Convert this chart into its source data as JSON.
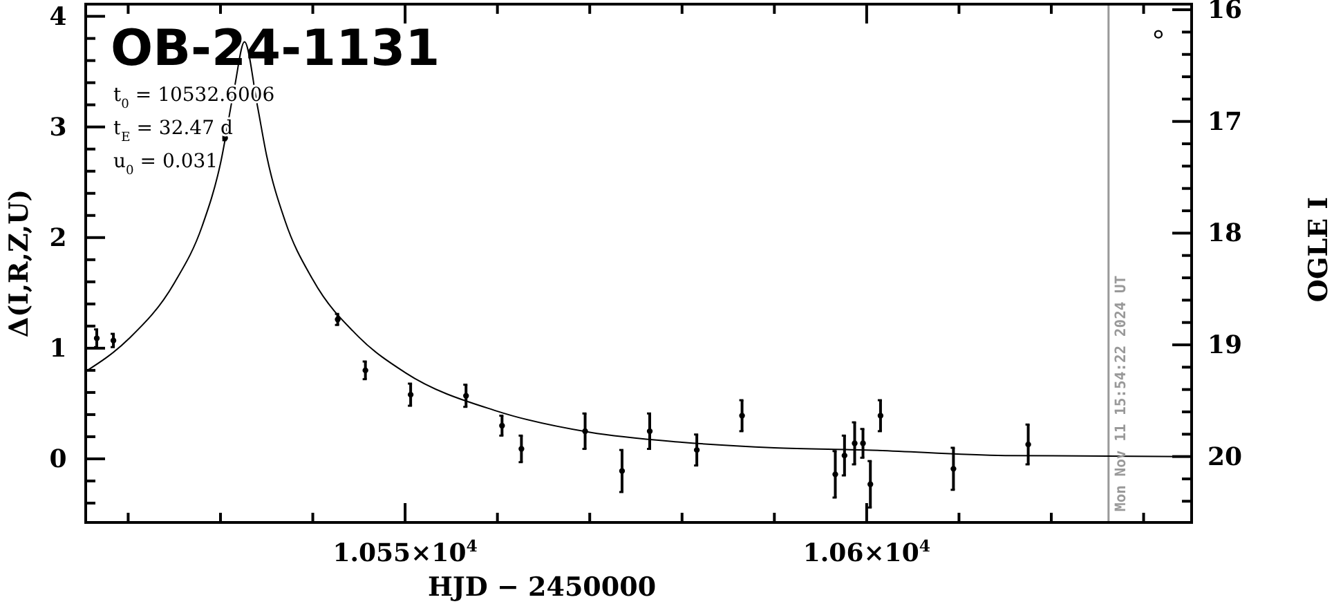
{
  "chart_data": {
    "type": "scatter",
    "title": "OB-24-1131",
    "xlabel": "HJD − 2450000",
    "ylabel": "Δ(I,R,Z,U)",
    "y2label": "OGLE I",
    "annotations": [
      "t$_{0}$ = 10532.6006",
      "t$_{E}$ = 32.47 d",
      "u$_{0}$ = 0.031",
      {
        "text": "Mon Nov 11 15:54:22 2024 UT",
        "x": 10626.2
      }
    ],
    "xlim": [
      10515.4,
      10635.2
    ],
    "ylim": [
      -0.575,
      4.11
    ],
    "y2lim": [
      20.59,
      15.95
    ],
    "xticks": [
      {
        "value": 10520,
        "label": null
      },
      {
        "value": 10530,
        "label": null
      },
      {
        "value": 10540,
        "label": null
      },
      {
        "value": 10550,
        "label": "1.055×10$^{4}$"
      },
      {
        "value": 10560,
        "label": null
      },
      {
        "value": 10570,
        "label": null
      },
      {
        "value": 10580,
        "label": null
      },
      {
        "value": 10590,
        "label": null
      },
      {
        "value": 10600,
        "label": "1.06×10$^{4}$"
      },
      {
        "value": 10610,
        "label": null
      },
      {
        "value": 10620,
        "label": null
      },
      {
        "value": 10630,
        "label": null
      }
    ],
    "yticks": [
      {
        "value": -0.4,
        "label": null
      },
      {
        "value": -0.2,
        "label": null
      },
      0,
      {
        "value": 0.2,
        "label": null
      },
      {
        "value": 0.4,
        "label": null
      },
      {
        "value": 0.6,
        "label": null
      },
      {
        "value": 0.8,
        "label": null
      },
      1,
      {
        "value": 1.2,
        "label": null
      },
      {
        "value": 1.4,
        "label": null
      },
      {
        "value": 1.6,
        "label": null
      },
      {
        "value": 1.8,
        "label": null
      },
      2,
      {
        "value": 2.2,
        "label": null
      },
      {
        "value": 2.4,
        "label": null
      },
      {
        "value": 2.6,
        "label": null
      },
      {
        "value": 2.8,
        "label": null
      },
      3,
      {
        "value": 3.2,
        "label": null
      },
      {
        "value": 3.4,
        "label": null
      },
      {
        "value": 3.6,
        "label": null
      },
      {
        "value": 3.8,
        "label": null
      },
      4
    ],
    "y2ticks": [
      16,
      {
        "value": 16.2,
        "label": null
      },
      {
        "value": 16.4,
        "label": null
      },
      {
        "value": 16.6,
        "label": null
      },
      {
        "value": 16.8,
        "label": null
      },
      17,
      {
        "value": 17.2,
        "label": null
      },
      {
        "value": 17.4,
        "label": null
      },
      {
        "value": 17.6,
        "label": null
      },
      {
        "value": 17.8,
        "label": null
      },
      18,
      {
        "value": 18.2,
        "label": null
      },
      {
        "value": 18.4,
        "label": null
      },
      {
        "value": 18.6,
        "label": null
      },
      {
        "value": 18.8,
        "label": null
      },
      19,
      {
        "value": 19.2,
        "label": null
      },
      {
        "value": 19.4,
        "label": null
      },
      {
        "value": 19.6,
        "label": null
      },
      {
        "value": 19.8,
        "label": null
      },
      20,
      {
        "value": 20.2,
        "label": null
      },
      {
        "value": 20.4,
        "label": null
      }
    ],
    "ref_lines": [
      {
        "axis": "x",
        "value": 10626.2,
        "color": "#999999"
      }
    ],
    "series": [
      {
        "color": "#000000",
        "marker": "circle",
        "x": [
          10516.6,
          10518.4,
          10530.5,
          10542.7,
          10545.7,
          10550.6,
          10556.6,
          10560.5,
          10562.6,
          10569.5,
          10573.5,
          10576.5,
          10581.6,
          10586.5,
          10596.6,
          10597.6,
          10598.7,
          10599.6,
          10600.4,
          10601.5,
          10609.4,
          10617.5
        ],
        "values": [
          1.09,
          1.07,
          2.9,
          1.26,
          0.8,
          0.58,
          0.57,
          0.3,
          0.09,
          0.25,
          -0.11,
          0.25,
          0.08,
          0.39,
          -0.14,
          0.03,
          0.14,
          0.14,
          -0.23,
          0.39,
          -0.09,
          0.13
        ],
        "errors": [
          0.08,
          0.06,
          0.02,
          0.05,
          0.08,
          0.1,
          0.1,
          0.09,
          0.12,
          0.16,
          0.19,
          0.16,
          0.14,
          0.14,
          0.21,
          0.18,
          0.19,
          0.13,
          0.21,
          0.14,
          0.19,
          0.18
        ]
      },
      {
        "type": "line",
        "color": "#000000",
        "line_style": "solid",
        "x": [
          10515.4,
          10520,
          10525,
          10528,
          10530,
          10531.5,
          10532.6,
          10534,
          10535,
          10537,
          10540,
          10545,
          10550,
          10560,
          10570,
          10580,
          10590,
          10600,
          10615,
          10635.2
        ],
        "values": [
          0.79,
          1.08,
          1.59,
          2.1,
          2.67,
          3.35,
          3.77,
          3.19,
          2.74,
          2.15,
          1.62,
          1.1,
          0.78,
          0.43,
          0.24,
          0.15,
          0.1,
          0.08,
          0.03,
          0.02
        ]
      },
      {
        "type": "scatter",
        "axis": "y2",
        "color": "#000000",
        "marker": "circle",
        "x": [
          10631.6
        ],
        "values": [
          16.22
        ]
      }
    ]
  }
}
